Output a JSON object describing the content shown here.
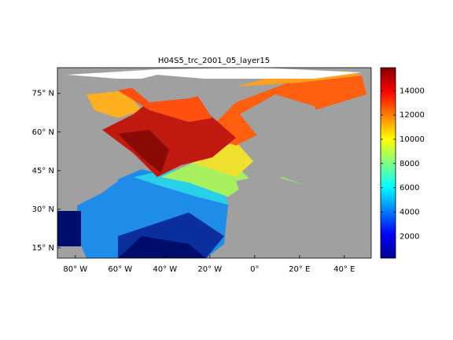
{
  "title": "H04S5_trc_2001_05_layer15",
  "map": {
    "xlim": [
      -88,
      52
    ],
    "ylim": [
      11,
      85
    ],
    "xticks": [
      {
        "value": -80,
        "label": "80° W"
      },
      {
        "value": -60,
        "label": "60° W"
      },
      {
        "value": -40,
        "label": "40° W"
      },
      {
        "value": -20,
        "label": "20° W"
      },
      {
        "value": 0,
        "label": "0°"
      },
      {
        "value": 20,
        "label": "20° E"
      },
      {
        "value": 40,
        "label": "40° E"
      }
    ],
    "yticks": [
      {
        "value": 15,
        "label": "15° N"
      },
      {
        "value": 30,
        "label": "30° N"
      },
      {
        "value": 45,
        "label": "45° N"
      },
      {
        "value": 60,
        "label": "60° N"
      },
      {
        "value": 75,
        "label": "75° N"
      }
    ]
  },
  "colorbar": {
    "colormap": "jet",
    "lim": [
      200,
      15900
    ],
    "ticks": [
      2000,
      4000,
      6000,
      8000,
      10000,
      12000,
      14000
    ]
  }
}
